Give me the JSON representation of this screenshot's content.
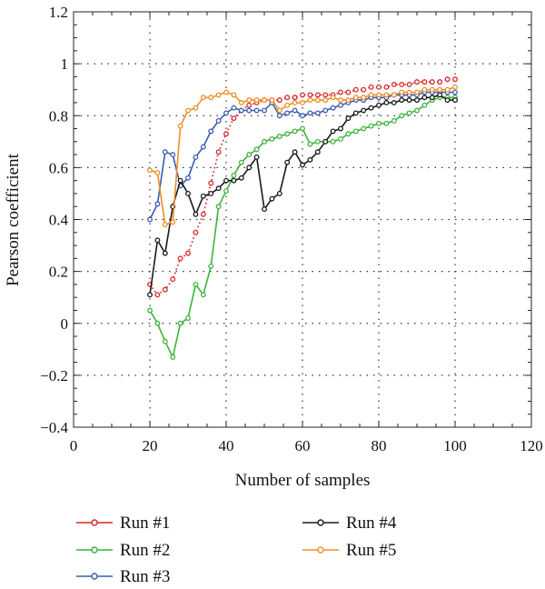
{
  "chart_data": {
    "type": "line",
    "xlabel": "Number of samples",
    "ylabel": "Pearson coefficient",
    "xlim": [
      0,
      120
    ],
    "ylim": [
      -0.4,
      1.2
    ],
    "xticks": [
      0,
      20,
      40,
      60,
      80,
      100,
      120
    ],
    "yticks": [
      -0.4,
      -0.2,
      0,
      0.2,
      0.4,
      0.6,
      0.8,
      1,
      1.2
    ],
    "xtick_labels": [
      "0",
      "20",
      "40",
      "60",
      "80",
      "100",
      "120"
    ],
    "ytick_labels": [
      "−0.4",
      "−0.2",
      "0",
      "0.2",
      "0.4",
      "0.6",
      "0.8",
      "1",
      "1.2"
    ],
    "grid": true,
    "legend_placement": "bottom",
    "series": [
      {
        "name": "Run #1",
        "color": "#d62728",
        "line_style": "dotted",
        "x": [
          20,
          22,
          24,
          26,
          28,
          30,
          32,
          34,
          36,
          38,
          40,
          42,
          44,
          46,
          48,
          50,
          52,
          54,
          56,
          58,
          60,
          62,
          64,
          66,
          68,
          70,
          72,
          74,
          76,
          78,
          80,
          82,
          84,
          86,
          88,
          90,
          92,
          94,
          96,
          98,
          100
        ],
        "y": [
          0.15,
          0.11,
          0.13,
          0.17,
          0.25,
          0.27,
          0.35,
          0.42,
          0.54,
          0.66,
          0.73,
          0.79,
          0.82,
          0.84,
          0.85,
          0.86,
          0.86,
          0.86,
          0.87,
          0.87,
          0.88,
          0.88,
          0.88,
          0.88,
          0.88,
          0.89,
          0.89,
          0.9,
          0.9,
          0.91,
          0.91,
          0.91,
          0.92,
          0.92,
          0.92,
          0.93,
          0.93,
          0.93,
          0.93,
          0.94,
          0.94
        ]
      },
      {
        "name": "Run #2",
        "color": "#3cb33c",
        "line_style": "solid",
        "x": [
          20,
          22,
          24,
          26,
          28,
          30,
          32,
          34,
          36,
          38,
          40,
          42,
          44,
          46,
          48,
          50,
          52,
          54,
          56,
          58,
          60,
          62,
          64,
          66,
          68,
          70,
          72,
          74,
          76,
          78,
          80,
          82,
          84,
          86,
          88,
          90,
          92,
          94,
          96,
          98,
          100
        ],
        "y": [
          0.05,
          0.0,
          -0.07,
          -0.13,
          0.0,
          0.02,
          0.15,
          0.11,
          0.22,
          0.45,
          0.51,
          0.57,
          0.62,
          0.65,
          0.67,
          0.7,
          0.71,
          0.72,
          0.73,
          0.74,
          0.75,
          0.69,
          0.7,
          0.7,
          0.7,
          0.71,
          0.73,
          0.74,
          0.75,
          0.76,
          0.77,
          0.77,
          0.78,
          0.8,
          0.81,
          0.82,
          0.84,
          0.86,
          0.87,
          0.87,
          0.87
        ]
      },
      {
        "name": "Run #3",
        "color": "#3a5db0",
        "line_style": "solid",
        "x": [
          20,
          22,
          24,
          26,
          28,
          30,
          32,
          34,
          36,
          38,
          40,
          42,
          44,
          46,
          48,
          50,
          52,
          54,
          56,
          58,
          60,
          62,
          64,
          66,
          68,
          70,
          72,
          74,
          76,
          78,
          80,
          82,
          84,
          86,
          88,
          90,
          92,
          94,
          96,
          98,
          100
        ],
        "y": [
          0.4,
          0.46,
          0.66,
          0.65,
          0.53,
          0.56,
          0.64,
          0.68,
          0.74,
          0.78,
          0.81,
          0.83,
          0.82,
          0.82,
          0.82,
          0.82,
          0.85,
          0.8,
          0.81,
          0.82,
          0.8,
          0.81,
          0.81,
          0.82,
          0.83,
          0.84,
          0.85,
          0.86,
          0.86,
          0.87,
          0.87,
          0.87,
          0.88,
          0.88,
          0.88,
          0.88,
          0.89,
          0.89,
          0.89,
          0.89,
          0.89
        ]
      },
      {
        "name": "Run #4",
        "color": "#1a1a1a",
        "line_style": "solid",
        "x": [
          20,
          22,
          24,
          26,
          28,
          30,
          32,
          34,
          36,
          38,
          40,
          42,
          44,
          46,
          48,
          50,
          52,
          54,
          56,
          58,
          60,
          62,
          64,
          66,
          68,
          70,
          72,
          74,
          76,
          78,
          80,
          82,
          84,
          86,
          88,
          90,
          92,
          94,
          96,
          98,
          100
        ],
        "y": [
          0.11,
          0.32,
          0.27,
          0.45,
          0.55,
          0.5,
          0.42,
          0.49,
          0.5,
          0.52,
          0.55,
          0.55,
          0.56,
          0.6,
          0.64,
          0.44,
          0.48,
          0.5,
          0.62,
          0.66,
          0.61,
          0.63,
          0.66,
          0.7,
          0.74,
          0.75,
          0.79,
          0.81,
          0.82,
          0.83,
          0.84,
          0.85,
          0.85,
          0.86,
          0.86,
          0.86,
          0.87,
          0.87,
          0.88,
          0.86,
          0.86
        ]
      },
      {
        "name": "Run #5",
        "color": "#f08c28",
        "line_style": "solid",
        "x": [
          20,
          22,
          24,
          26,
          28,
          30,
          32,
          34,
          36,
          38,
          40,
          42,
          44,
          46,
          48,
          50,
          52,
          54,
          56,
          58,
          60,
          62,
          64,
          66,
          68,
          70,
          72,
          74,
          76,
          78,
          80,
          82,
          84,
          86,
          88,
          90,
          92,
          94,
          96,
          98,
          100
        ],
        "y": [
          0.59,
          0.58,
          0.38,
          0.39,
          0.76,
          0.82,
          0.83,
          0.87,
          0.87,
          0.88,
          0.89,
          0.88,
          0.85,
          0.86,
          0.86,
          0.86,
          0.86,
          0.82,
          0.84,
          0.85,
          0.85,
          0.86,
          0.86,
          0.86,
          0.87,
          0.86,
          0.86,
          0.87,
          0.87,
          0.88,
          0.88,
          0.88,
          0.88,
          0.89,
          0.89,
          0.89,
          0.9,
          0.9,
          0.9,
          0.9,
          0.91
        ]
      }
    ]
  }
}
